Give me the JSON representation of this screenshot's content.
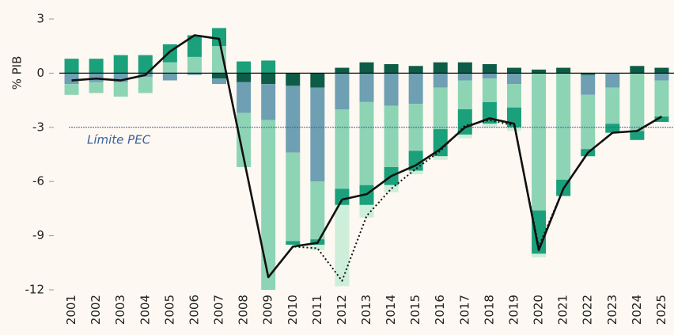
{
  "chart_data": {
    "type": "bar",
    "y_label": "% PIB",
    "categories": [
      "2001",
      "2002",
      "2003",
      "2004",
      "2005",
      "2006",
      "2007",
      "2008",
      "2009",
      "2010",
      "2011",
      "2012",
      "2013",
      "2014",
      "2015",
      "2016",
      "2017",
      "2018",
      "2019",
      "2020",
      "2021",
      "2022",
      "2023",
      "2024",
      "2025"
    ],
    "series": [
      {
        "color": "#0d5c47",
        "values": [
          0,
          0,
          0,
          0,
          0,
          0,
          -0.3,
          -0.5,
          -0.6,
          -0.7,
          -0.8,
          0.3,
          0.6,
          0.5,
          0.4,
          0.6,
          0.6,
          0.5,
          0.3,
          0.2,
          0.3,
          -0.1,
          0,
          0.4,
          0.3
        ]
      },
      {
        "color": "#6f9fb2",
        "values": [
          -0.6,
          -0.5,
          -0.5,
          -0.2,
          -0.4,
          -0.1,
          -0.3,
          -1.7,
          -2.0,
          -3.7,
          -5.2,
          -2.0,
          -1.6,
          -1.8,
          -1.7,
          -0.8,
          -0.4,
          -0.3,
          -0.6,
          0,
          0,
          -1.1,
          -0.8,
          0,
          -0.4
        ]
      },
      {
        "color": "#8dd4b5",
        "values": [
          -0.6,
          -0.6,
          -0.8,
          -0.9,
          0.6,
          0.9,
          1.5,
          -3.0,
          -9.4,
          -4.9,
          -3.2,
          -4.4,
          -4.6,
          -3.4,
          -2.6,
          -2.3,
          -1.6,
          -1.3,
          -1.3,
          -7.6,
          -5.9,
          -3.0,
          -2.0,
          -3.2,
          -2.0
        ]
      },
      {
        "color": "#1aa07a",
        "values": [
          0.8,
          0.8,
          1.0,
          1.0,
          1.0,
          1.2,
          1.0,
          0.65,
          0.7,
          -0.2,
          -0.3,
          -0.9,
          -1.1,
          -1.0,
          -1.1,
          -1.5,
          -1.4,
          -1.2,
          -1.1,
          -2.4,
          -0.9,
          -0.4,
          -0.5,
          -0.5,
          -0.3
        ]
      },
      {
        "color": "#cdeed9",
        "values": [
          0,
          0,
          0,
          0,
          0,
          0,
          0,
          0,
          0,
          0,
          -0.3,
          -4.5,
          -0.7,
          -0.4,
          -0.2,
          -0.2,
          -0.2,
          -0.2,
          -0.2,
          -0.2,
          0,
          0,
          0,
          0,
          0
        ]
      }
    ],
    "lines": [
      {
        "color": "#111111",
        "dashed": false,
        "values": [
          -0.4,
          -0.3,
          -0.4,
          -0.1,
          1.2,
          2.1,
          1.9,
          -4.7,
          -11.3,
          -9.6,
          -9.4,
          -7.0,
          -6.7,
          -5.7,
          -5.1,
          -4.2,
          -3.0,
          -2.5,
          -2.8,
          -9.8,
          -6.4,
          -4.4,
          -3.3,
          -3.2,
          -2.4
        ]
      },
      {
        "color": "#111111",
        "dashed": true,
        "values": [
          -0.4,
          -0.3,
          -0.4,
          -0.1,
          1.2,
          2.1,
          1.9,
          -4.7,
          -11.3,
          -9.6,
          -9.7,
          -11.5,
          -7.9,
          -6.4,
          -5.3,
          -4.3,
          -2.9,
          -2.6,
          -2.9,
          -9.6,
          -6.4,
          -4.4,
          -3.3,
          -3.2,
          -2.4
        ]
      }
    ],
    "reference": {
      "value": -3,
      "label": "Límite PEC",
      "color": "#3a5fa0"
    },
    "ylim": [
      -12,
      3
    ],
    "yticks": [
      3,
      0,
      -3,
      -6,
      -9,
      -12
    ]
  }
}
